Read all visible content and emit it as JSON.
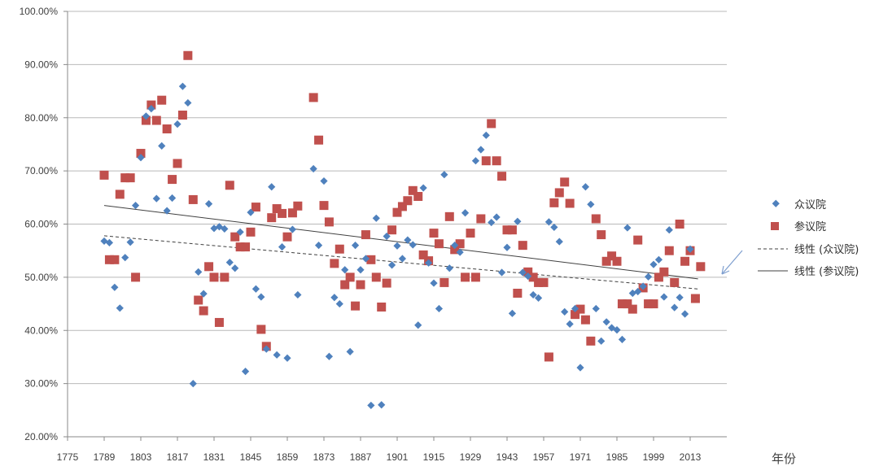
{
  "chart_data": {
    "type": "scatter",
    "title": "",
    "xlabel": "年份",
    "ylabel": "",
    "xlim": [
      1775,
      2027
    ],
    "ylim": [
      0.2,
      1.0
    ],
    "grid": true,
    "x_ticks": [
      1775,
      1789,
      1803,
      1817,
      1831,
      1845,
      1859,
      1873,
      1887,
      1901,
      1915,
      1929,
      1943,
      1957,
      1971,
      1985,
      1999,
      2013
    ],
    "y_ticks": [
      "20.00%",
      "30.00%",
      "40.00%",
      "50.00%",
      "60.00%",
      "70.00%",
      "80.00%",
      "90.00%",
      "100.00%"
    ],
    "legend_position": "right",
    "series": [
      {
        "name": "众议院",
        "marker": "diamond",
        "color": "#4F81BD",
        "points": [
          [
            1789,
            0.568
          ],
          [
            1791,
            0.565
          ],
          [
            1793,
            0.481
          ],
          [
            1795,
            0.442
          ],
          [
            1797,
            0.537
          ],
          [
            1799,
            0.566
          ],
          [
            1801,
            0.635
          ],
          [
            1803,
            0.725
          ],
          [
            1805,
            0.803
          ],
          [
            1807,
            0.817
          ],
          [
            1809,
            0.648
          ],
          [
            1811,
            0.747
          ],
          [
            1813,
            0.625
          ],
          [
            1815,
            0.649
          ],
          [
            1817,
            0.788
          ],
          [
            1819,
            0.859
          ],
          [
            1821,
            0.828
          ],
          [
            1823,
            0.3
          ],
          [
            1825,
            0.51
          ],
          [
            1827,
            0.469
          ],
          [
            1829,
            0.638
          ],
          [
            1831,
            0.592
          ],
          [
            1833,
            0.595
          ],
          [
            1835,
            0.591
          ],
          [
            1837,
            0.528
          ],
          [
            1839,
            0.517
          ],
          [
            1841,
            0.585
          ],
          [
            1843,
            0.323
          ],
          [
            1845,
            0.622
          ],
          [
            1847,
            0.478
          ],
          [
            1849,
            0.463
          ],
          [
            1851,
            0.365
          ],
          [
            1853,
            0.67
          ],
          [
            1855,
            0.354
          ],
          [
            1857,
            0.557
          ],
          [
            1859,
            0.348
          ],
          [
            1861,
            0.59
          ],
          [
            1863,
            0.467
          ],
          [
            1869,
            0.704
          ],
          [
            1871,
            0.56
          ],
          [
            1873,
            0.681
          ],
          [
            1875,
            0.351
          ],
          [
            1877,
            0.462
          ],
          [
            1879,
            0.45
          ],
          [
            1881,
            0.514
          ],
          [
            1883,
            0.36
          ],
          [
            1885,
            0.56
          ],
          [
            1887,
            0.514
          ],
          [
            1889,
            0.535
          ],
          [
            1891,
            0.259
          ],
          [
            1893,
            0.611
          ],
          [
            1895,
            0.26
          ],
          [
            1897,
            0.577
          ],
          [
            1899,
            0.523
          ],
          [
            1901,
            0.559
          ],
          [
            1903,
            0.535
          ],
          [
            1905,
            0.57
          ],
          [
            1907,
            0.561
          ],
          [
            1909,
            0.41
          ],
          [
            1911,
            0.668
          ],
          [
            1913,
            0.527
          ],
          [
            1915,
            0.489
          ],
          [
            1917,
            0.441
          ],
          [
            1919,
            0.693
          ],
          [
            1921,
            0.517
          ],
          [
            1923,
            0.56
          ],
          [
            1925,
            0.547
          ],
          [
            1927,
            0.621
          ],
          [
            1931,
            0.719
          ],
          [
            1933,
            0.74
          ],
          [
            1935,
            0.767
          ],
          [
            1937,
            0.603
          ],
          [
            1939,
            0.613
          ],
          [
            1941,
            0.509
          ],
          [
            1943,
            0.556
          ],
          [
            1945,
            0.432
          ],
          [
            1947,
            0.605
          ],
          [
            1949,
            0.509
          ],
          [
            1951,
            0.502
          ],
          [
            1953,
            0.467
          ],
          [
            1955,
            0.461
          ],
          [
            1959,
            0.604
          ],
          [
            1961,
            0.594
          ],
          [
            1963,
            0.567
          ],
          [
            1965,
            0.435
          ],
          [
            1967,
            0.412
          ],
          [
            1969,
            0.441
          ],
          [
            1971,
            0.33
          ],
          [
            1973,
            0.67
          ],
          [
            1975,
            0.637
          ],
          [
            1977,
            0.441
          ],
          [
            1979,
            0.38
          ],
          [
            1981,
            0.416
          ],
          [
            1983,
            0.405
          ],
          [
            1985,
            0.401
          ],
          [
            1987,
            0.383
          ],
          [
            1989,
            0.593
          ],
          [
            1991,
            0.47
          ],
          [
            1993,
            0.473
          ],
          [
            1995,
            0.483
          ],
          [
            1997,
            0.501
          ],
          [
            1999,
            0.524
          ],
          [
            2001,
            0.533
          ],
          [
            2003,
            0.463
          ],
          [
            2005,
            0.589
          ],
          [
            2007,
            0.443
          ],
          [
            2009,
            0.462
          ],
          [
            2011,
            0.431
          ],
          [
            2013,
            0.553
          ]
        ]
      },
      {
        "name": "参议院",
        "marker": "square",
        "color": "#C0504D",
        "points": [
          [
            1789,
            0.692
          ],
          [
            1791,
            0.533
          ],
          [
            1793,
            0.533
          ],
          [
            1795,
            0.656
          ],
          [
            1797,
            0.687
          ],
          [
            1799,
            0.687
          ],
          [
            1801,
            0.5
          ],
          [
            1803,
            0.733
          ],
          [
            1805,
            0.795
          ],
          [
            1807,
            0.824
          ],
          [
            1809,
            0.795
          ],
          [
            1811,
            0.833
          ],
          [
            1813,
            0.779
          ],
          [
            1815,
            0.684
          ],
          [
            1817,
            0.714
          ],
          [
            1819,
            0.805
          ],
          [
            1821,
            0.917
          ],
          [
            1823,
            0.646
          ],
          [
            1825,
            0.457
          ],
          [
            1827,
            0.437
          ],
          [
            1829,
            0.52
          ],
          [
            1831,
            0.5
          ],
          [
            1833,
            0.415
          ],
          [
            1835,
            0.5
          ],
          [
            1837,
            0.673
          ],
          [
            1839,
            0.576
          ],
          [
            1841,
            0.557
          ],
          [
            1843,
            0.557
          ],
          [
            1845,
            0.585
          ],
          [
            1847,
            0.632
          ],
          [
            1849,
            0.402
          ],
          [
            1851,
            0.37
          ],
          [
            1853,
            0.612
          ],
          [
            1855,
            0.629
          ],
          [
            1857,
            0.62
          ],
          [
            1859,
            0.576
          ],
          [
            1861,
            0.621
          ],
          [
            1863,
            0.634
          ],
          [
            1869,
            0.838
          ],
          [
            1871,
            0.758
          ],
          [
            1873,
            0.635
          ],
          [
            1875,
            0.604
          ],
          [
            1877,
            0.526
          ],
          [
            1879,
            0.553
          ],
          [
            1881,
            0.486
          ],
          [
            1883,
            0.5
          ],
          [
            1885,
            0.446
          ],
          [
            1887,
            0.486
          ],
          [
            1889,
            0.58
          ],
          [
            1891,
            0.533
          ],
          [
            1893,
            0.5
          ],
          [
            1895,
            0.444
          ],
          [
            1897,
            0.489
          ],
          [
            1899,
            0.589
          ],
          [
            1901,
            0.622
          ],
          [
            1903,
            0.633
          ],
          [
            1905,
            0.644
          ],
          [
            1907,
            0.663
          ],
          [
            1909,
            0.652
          ],
          [
            1911,
            0.542
          ],
          [
            1913,
            0.531
          ],
          [
            1915,
            0.583
          ],
          [
            1917,
            0.563
          ],
          [
            1919,
            0.49
          ],
          [
            1921,
            0.614
          ],
          [
            1923,
            0.552
          ],
          [
            1925,
            0.563
          ],
          [
            1927,
            0.5
          ],
          [
            1929,
            0.583
          ],
          [
            1931,
            0.5
          ],
          [
            1933,
            0.61
          ],
          [
            1935,
            0.719
          ],
          [
            1937,
            0.789
          ],
          [
            1939,
            0.719
          ],
          [
            1941,
            0.69
          ],
          [
            1943,
            0.589
          ],
          [
            1945,
            0.589
          ],
          [
            1947,
            0.47
          ],
          [
            1949,
            0.56
          ],
          [
            1951,
            0.51
          ],
          [
            1953,
            0.5
          ],
          [
            1955,
            0.49
          ],
          [
            1957,
            0.49
          ],
          [
            1959,
            0.35
          ],
          [
            1961,
            0.64
          ],
          [
            1963,
            0.659
          ],
          [
            1965,
            0.679
          ],
          [
            1967,
            0.639
          ],
          [
            1969,
            0.43
          ],
          [
            1971,
            0.44
          ],
          [
            1973,
            0.42
          ],
          [
            1975,
            0.38
          ],
          [
            1977,
            0.61
          ],
          [
            1979,
            0.58
          ],
          [
            1981,
            0.53
          ],
          [
            1983,
            0.54
          ],
          [
            1985,
            0.53
          ],
          [
            1987,
            0.45
          ],
          [
            1989,
            0.45
          ],
          [
            1991,
            0.44
          ],
          [
            1993,
            0.57
          ],
          [
            1995,
            0.48
          ],
          [
            1997,
            0.45
          ],
          [
            1999,
            0.45
          ],
          [
            2001,
            0.5
          ],
          [
            2003,
            0.51
          ],
          [
            2005,
            0.55
          ],
          [
            2007,
            0.49
          ],
          [
            2009,
            0.6
          ],
          [
            2011,
            0.53
          ],
          [
            2013,
            0.55
          ],
          [
            2015,
            0.46
          ],
          [
            2017,
            0.52
          ]
        ]
      }
    ],
    "trendlines": [
      {
        "name": "线性 (众议院)",
        "style": "dashed",
        "color": "#404040",
        "x": [
          1789,
          2016
        ],
        "y": [
          0.578,
          0.478
        ]
      },
      {
        "name": "线性 (参议院)",
        "style": "solid",
        "color": "#404040",
        "x": [
          1789,
          2016
        ],
        "y": [
          0.635,
          0.497
        ]
      }
    ],
    "annotations": [
      {
        "type": "arrow",
        "color": "#7F9FCF",
        "description": "points toward trendline end"
      }
    ]
  }
}
